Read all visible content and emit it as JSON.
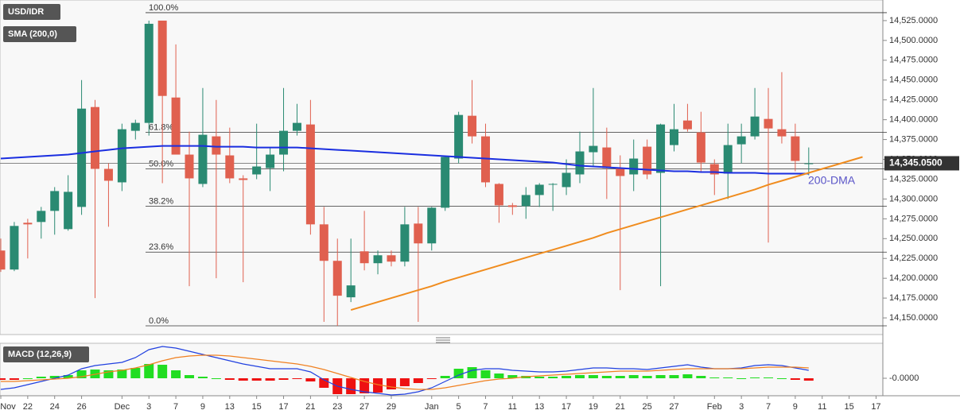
{
  "chart_data": [
    {
      "type": "candlestick",
      "symbol": "USD/IDR",
      "categories": [
        "Nov",
        null,
        "22",
        null,
        "24",
        null,
        "26",
        null,
        null,
        "Dec",
        null,
        "3",
        null,
        "7",
        null,
        "9",
        null,
        "13",
        null,
        "15",
        null,
        "17",
        null,
        "21",
        null,
        "23",
        null,
        "27",
        null,
        "29",
        null,
        null,
        "Jan",
        null,
        "5",
        null,
        "7",
        null,
        "11",
        null,
        "13",
        null,
        "17",
        null,
        "19",
        null,
        "21",
        null,
        "25",
        null,
        "27",
        null,
        null,
        "Feb",
        null,
        "3",
        null,
        "7",
        null,
        "9",
        null,
        "11",
        null,
        "15",
        null,
        "17"
      ],
      "open": [
        14235,
        14211,
        14270,
        14271,
        14285,
        14262,
        14290,
        14416,
        14338,
        14321,
        14386,
        14396,
        14525,
        14428,
        14356,
        14319,
        14379,
        14355,
        14326,
        14331,
        14339,
        14356,
        14386,
        14394,
        14268,
        14222,
        14176,
        14234,
        14219,
        14229,
        14221,
        14269,
        14244,
        14289,
        14351,
        14405,
        14379,
        14319,
        14292,
        14291,
        14305,
        14318,
        14315,
        14331,
        14359,
        14365,
        14339,
        14331,
        14366,
        14333,
        14368,
        14399,
        14384,
        14344,
        14332,
        14369,
        14379,
        14401,
        14388,
        14379,
        14345,
        null,
        null,
        null,
        null,
        null
      ],
      "high": [
        14250,
        14271,
        14275,
        14290,
        14315,
        14330,
        14450,
        14425,
        14345,
        14395,
        14400,
        14525,
        14525,
        14495,
        14385,
        14440,
        14425,
        14390,
        14330,
        14395,
        14365,
        14440,
        14420,
        14425,
        14290,
        14250,
        14250,
        14285,
        14235,
        14235,
        14290,
        14290,
        14290,
        14355,
        14410,
        14450,
        14395,
        14320,
        14295,
        14315,
        14320,
        14320,
        14350,
        14385,
        14440,
        14390,
        14355,
        14375,
        14375,
        14395,
        14420,
        14420,
        14410,
        14350,
        14395,
        14395,
        14440,
        14440,
        14460,
        14395,
        14365,
        null,
        null,
        null,
        null,
        null
      ],
      "low": [
        14208,
        14209,
        14225,
        14250,
        14255,
        14260,
        14280,
        14175,
        14265,
        14310,
        14375,
        14380,
        14320,
        14360,
        14190,
        14315,
        14200,
        14320,
        14195,
        14325,
        14310,
        14335,
        14380,
        14255,
        14145,
        14140,
        14170,
        14210,
        14205,
        14215,
        14215,
        14145,
        14235,
        14285,
        14345,
        14370,
        14315,
        14270,
        14280,
        14275,
        14290,
        14285,
        14305,
        14320,
        14340,
        14300,
        14185,
        14310,
        14325,
        14190,
        14360,
        14385,
        14335,
        14305,
        14300,
        14345,
        14375,
        14245,
        14370,
        14335,
        14330,
        null,
        null,
        null,
        null,
        null
      ],
      "close": [
        14211,
        14266,
        14268,
        14285,
        14310,
        14309,
        14414,
        14338,
        14323,
        14388,
        14396,
        14521,
        14430,
        14356,
        14326,
        14381,
        14356,
        14326,
        14324,
        14341,
        14356,
        14386,
        14396,
        14268,
        14222,
        14178,
        14191,
        14219,
        14229,
        14221,
        14268,
        14244,
        14289,
        14353,
        14406,
        14379,
        14321,
        14292,
        14290,
        14305,
        14318,
        14319,
        14333,
        14360,
        14367,
        14339,
        14329,
        14351,
        14331,
        14394,
        14388,
        14388,
        14346,
        14331,
        14368,
        14379,
        14404,
        14389,
        14379,
        14348,
        14345,
        null,
        null,
        null,
        null,
        null
      ],
      "up_color": "#2a8a72",
      "down_color": "#e0604f",
      "sma": {
        "name": "SMA (200,0)",
        "color": "#1a2ee0",
        "values": [
          14351,
          14352,
          14353,
          14354,
          14355,
          14356,
          14358,
          14360,
          14362,
          14364,
          14365,
          14366,
          14367,
          14367,
          14367,
          14367,
          14366,
          14366,
          14366,
          14365,
          14365,
          14365,
          14365,
          14364,
          14363,
          14362,
          14361,
          14360,
          14359,
          14358,
          14357,
          14356,
          14355,
          14354,
          14353,
          14352,
          14351,
          14350,
          14349,
          14348,
          14347,
          14346,
          14344,
          14342,
          14341,
          14340,
          14339,
          14338,
          14337,
          14336,
          14335,
          14335,
          14334,
          14334,
          14333,
          14333,
          14333,
          14332,
          14332,
          14332,
          14332,
          null,
          null,
          null,
          null,
          null
        ]
      },
      "trendline": {
        "color": "#f08c1e",
        "values": [
          null,
          null,
          null,
          null,
          null,
          null,
          null,
          null,
          null,
          null,
          null,
          null,
          null,
          null,
          null,
          null,
          null,
          null,
          null,
          null,
          null,
          null,
          null,
          null,
          null,
          null,
          14160,
          14165,
          14170,
          14175,
          14180,
          14185,
          14190,
          14196,
          14201,
          14206,
          14211,
          14216,
          14221,
          14226,
          14231,
          14236,
          14241,
          14246,
          14251,
          14257,
          14262,
          14267,
          14272,
          14277,
          14282,
          14287,
          14292,
          14297,
          14302,
          14307,
          14312,
          14318,
          14323,
          14328,
          14333,
          14338,
          14343,
          14348,
          14353,
          null
        ]
      },
      "annotation": {
        "text": "200-DMA",
        "color": "#5a55c8"
      },
      "fibonacci": [
        {
          "label": "100.0%",
          "value": 14535
        },
        {
          "label": "61.8%",
          "value": 14384
        },
        {
          "label": "50.0%",
          "value": 14338
        },
        {
          "label": "38.2%",
          "value": 14291
        },
        {
          "label": "23.6%",
          "value": 14233
        },
        {
          "label": "0.0%",
          "value": 14140
        }
      ],
      "last_price": {
        "value": 14345.05,
        "label": "14,345.0500"
      },
      "ylim": [
        14129,
        14551
      ],
      "yticks": [
        {
          "value": 14150,
          "label": "14,150.0000"
        },
        {
          "value": 14175,
          "label": "14,175.0000"
        },
        {
          "value": 14200,
          "label": "14,200.0000"
        },
        {
          "value": 14225,
          "label": "14,225.0000"
        },
        {
          "value": 14250,
          "label": "14,250.0000"
        },
        {
          "value": 14275,
          "label": "14,275.0000"
        },
        {
          "value": 14300,
          "label": "14,300.0000"
        },
        {
          "value": 14325,
          "label": "14,325.0000"
        },
        {
          "value": 14350,
          "label": "14,350.0000"
        },
        {
          "value": 14375,
          "label": "14,375.0000"
        },
        {
          "value": 14400,
          "label": "14,400.0000"
        },
        {
          "value": 14425,
          "label": "14,425.0000"
        },
        {
          "value": 14450,
          "label": "14,450.0000"
        },
        {
          "value": 14475,
          "label": "14,475.0000"
        },
        {
          "value": 14500,
          "label": "14,500.0000"
        },
        {
          "value": 14525,
          "label": "14,525.0000"
        }
      ]
    },
    {
      "type": "macd",
      "title": "MACD (12,26,9)",
      "ylim": [
        -22,
        44
      ],
      "yticks": [
        {
          "value": 0,
          "label": "-0.0000"
        }
      ],
      "histogram": {
        "up_color": "#22dd22",
        "down_color": "#ee1111",
        "values": [
          -2,
          -2,
          0,
          2,
          3,
          4,
          10,
          11,
          10,
          11,
          13,
          18,
          17,
          10,
          4,
          2,
          0,
          -2,
          -3,
          -3,
          -3,
          -2,
          -1,
          -4,
          -12,
          -20,
          -20,
          -19,
          -18,
          -14,
          -10,
          -6,
          -1,
          3,
          12,
          14,
          10,
          6,
          4,
          3,
          2,
          2,
          3,
          4,
          4,
          3,
          3,
          4,
          3,
          4,
          4,
          5,
          3,
          1,
          1,
          0,
          1,
          1,
          0,
          -2,
          -3,
          null,
          null,
          null,
          null,
          null
        ]
      },
      "series": [
        {
          "color": "#2040e0",
          "values": [
            -14,
            -12,
            -8,
            -4,
            0,
            4,
            12,
            16,
            18,
            20,
            26,
            36,
            40,
            38,
            34,
            30,
            26,
            22,
            18,
            15,
            12,
            12,
            12,
            8,
            -2,
            -10,
            -14,
            -17,
            -19,
            -21,
            -20,
            -17,
            -12,
            -4,
            4,
            10,
            12,
            12,
            10,
            9,
            8,
            8,
            9,
            11,
            13,
            13,
            12,
            12,
            11,
            13,
            15,
            17,
            14,
            12,
            12,
            13,
            16,
            17,
            16,
            13,
            10,
            null,
            null,
            null,
            null,
            null
          ]
        },
        {
          "color": "#f08020",
          "values": [
            -4,
            -4,
            -3,
            -2,
            -1,
            0,
            2,
            5,
            8,
            10,
            13,
            17,
            22,
            26,
            28,
            29,
            29,
            28,
            26,
            24,
            22,
            20,
            18,
            15,
            11,
            6,
            1,
            -4,
            -8,
            -11,
            -13,
            -14,
            -14,
            -12,
            -9,
            -6,
            -3,
            -1,
            0,
            2,
            3,
            4,
            5,
            6,
            7,
            8,
            9,
            9,
            9,
            10,
            11,
            12,
            12,
            12,
            12,
            12,
            13,
            14,
            14,
            14,
            13,
            null,
            null,
            null,
            null,
            null
          ]
        }
      ]
    }
  ]
}
